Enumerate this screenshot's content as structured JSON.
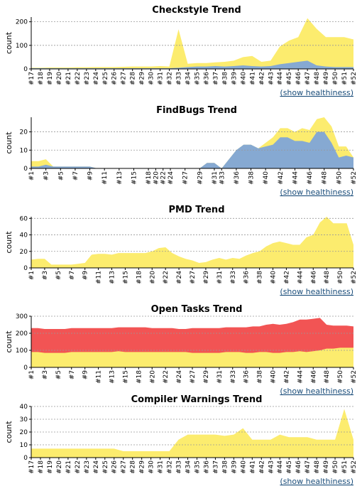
{
  "colors": {
    "yellow": "#fcec6e",
    "blue": "#86a9d2",
    "red": "#f25454",
    "grid": "#999999"
  },
  "chart_data": [
    {
      "type": "area",
      "title": "Checkstyle Trend",
      "ylabel": "count",
      "link": "(show healthiness)",
      "ylim": [
        0,
        220
      ],
      "yticks": [
        0,
        100,
        200
      ],
      "x": [
        "#17",
        "#18",
        "#19",
        "#20",
        "#21",
        "#22",
        "#23",
        "#24",
        "#25",
        "#26",
        "#27",
        "#28",
        "#29",
        "#30",
        "#31",
        "#32",
        "#33",
        "#34",
        "#35",
        "#36",
        "#37",
        "#38",
        "#39",
        "#40",
        "#41",
        "#42",
        "#43",
        "#44",
        "#45",
        "#46",
        "#47",
        "#48",
        "#49",
        "#50",
        "#51",
        "#52"
      ],
      "xticks": [
        "#17",
        "#18",
        "#19",
        "#20",
        "#21",
        "#22",
        "#23",
        "#24",
        "#25",
        "#26",
        "#27",
        "#28",
        "#29",
        "#30",
        "#31",
        "#32",
        "#33",
        "#34",
        "#35",
        "#36",
        "#37",
        "#38",
        "#39",
        "#40",
        "#41",
        "#42",
        "#43",
        "#44",
        "#45",
        "#46",
        "#47",
        "#48",
        "#49",
        "#50",
        "#51",
        "#52"
      ],
      "series": [
        {
          "color": "blue",
          "values": [
            3,
            3,
            3,
            3,
            3,
            3,
            3,
            3,
            3,
            3,
            3,
            3,
            3,
            3,
            3,
            3,
            5,
            8,
            10,
            10,
            12,
            10,
            12,
            15,
            12,
            10,
            12,
            20,
            25,
            30,
            35,
            15,
            10,
            8,
            8,
            8
          ]
        },
        {
          "color": "yellow",
          "values": [
            5,
            5,
            6,
            6,
            6,
            7,
            7,
            8,
            8,
            8,
            9,
            10,
            10,
            10,
            12,
            10,
            168,
            22,
            25,
            25,
            28,
            30,
            35,
            50,
            55,
            30,
            35,
            95,
            120,
            135,
            215,
            170,
            135,
            135,
            135,
            125
          ]
        }
      ]
    },
    {
      "type": "area",
      "title": "FindBugs Trend",
      "ylabel": "count",
      "link": "(show healthiness)",
      "ylim": [
        0,
        28
      ],
      "yticks": [
        0,
        10,
        20
      ],
      "x": [
        "#1",
        "#2",
        "#3",
        "#4",
        "#5",
        "#6",
        "#7",
        "#8",
        "#9",
        "#10",
        "#11",
        "#12",
        "#13",
        "#14",
        "#15",
        "#16",
        "#18",
        "#20",
        "#22",
        "#24",
        "#25",
        "#27",
        "#28",
        "#29",
        "#30",
        "#31",
        "#33",
        "#34",
        "#36",
        "#37",
        "#38",
        "#39",
        "#40",
        "#41",
        "#42",
        "#43",
        "#44",
        "#45",
        "#46",
        "#47",
        "#48",
        "#49",
        "#50",
        "#51",
        "#52"
      ],
      "xticks": [
        "#1",
        "#3",
        "#5",
        "#7",
        "#9",
        "#11",
        "#13",
        "#15",
        "#18",
        "#20",
        "#22",
        "#24",
        "#27",
        "#29",
        "#31",
        "#33",
        "#36",
        "#38",
        "#40",
        "#42",
        "#44",
        "#46",
        "#48",
        "#50",
        "#52"
      ],
      "series": [
        {
          "color": "blue",
          "values": [
            1,
            1,
            2,
            1,
            1,
            1,
            1,
            1,
            1,
            0,
            0,
            0,
            0,
            0,
            0,
            0,
            0,
            0,
            0,
            0,
            0,
            0,
            0,
            0,
            3,
            3,
            0,
            5,
            10,
            13,
            13,
            11,
            12,
            13,
            17,
            17,
            15,
            15,
            14,
            20,
            20,
            14,
            6,
            7,
            6
          ]
        },
        {
          "color": "yellow",
          "values": [
            4,
            4,
            5,
            1,
            1,
            1,
            1,
            1,
            1,
            0,
            0,
            0,
            0,
            0,
            0,
            0,
            0,
            0,
            0,
            0,
            0,
            0,
            0,
            0,
            3,
            3,
            0,
            5,
            10,
            13,
            13,
            11,
            14,
            17,
            22,
            22,
            20,
            22,
            21,
            27,
            28,
            23,
            12,
            12,
            6
          ]
        }
      ]
    },
    {
      "type": "area",
      "title": "PMD Trend",
      "ylabel": "count",
      "link": "(show healthiness)",
      "ylim": [
        0,
        62
      ],
      "yticks": [
        0,
        20,
        40,
        60
      ],
      "x": [
        "#1",
        "#2",
        "#3",
        "#4",
        "#5",
        "#6",
        "#7",
        "#8",
        "#9",
        "#10",
        "#11",
        "#12",
        "#13",
        "#14",
        "#15",
        "#16",
        "#18",
        "#19",
        "#20",
        "#21",
        "#22",
        "#23",
        "#24",
        "#25",
        "#27",
        "#28",
        "#29",
        "#30",
        "#31",
        "#32",
        "#33",
        "#34",
        "#36",
        "#37",
        "#38",
        "#39",
        "#40",
        "#41",
        "#42",
        "#43",
        "#44",
        "#45",
        "#46",
        "#47",
        "#48",
        "#49",
        "#50",
        "#51",
        "#52"
      ],
      "xticks": [
        "#1",
        "#3",
        "#5",
        "#7",
        "#9",
        "#11",
        "#13",
        "#15",
        "#18",
        "#20",
        "#22",
        "#24",
        "#27",
        "#29",
        "#31",
        "#33",
        "#36",
        "#38",
        "#40",
        "#42",
        "#44",
        "#46",
        "#48",
        "#50",
        "#52"
      ],
      "series": [
        {
          "color": "yellow",
          "values": [
            10,
            11,
            11,
            4,
            4,
            4,
            4,
            5,
            6,
            16,
            17,
            17,
            16,
            18,
            18,
            18,
            18,
            18,
            20,
            24,
            25,
            18,
            14,
            11,
            9,
            6,
            7,
            10,
            12,
            10,
            12,
            11,
            15,
            18,
            20,
            26,
            30,
            32,
            30,
            28,
            28,
            37,
            40,
            55,
            62,
            54,
            54,
            54,
            28
          ]
        }
      ]
    },
    {
      "type": "area",
      "title": "Open Tasks Trend",
      "ylabel": "count",
      "link": "(show healthiness)",
      "ylim": [
        0,
        300
      ],
      "yticks": [
        0,
        100,
        200,
        300
      ],
      "x": [
        "#1",
        "#2",
        "#3",
        "#4",
        "#5",
        "#6",
        "#7",
        "#8",
        "#9",
        "#10",
        "#11",
        "#12",
        "#13",
        "#14",
        "#15",
        "#16",
        "#18",
        "#19",
        "#20",
        "#21",
        "#22",
        "#23",
        "#24",
        "#25",
        "#27",
        "#28",
        "#29",
        "#30",
        "#31",
        "#32",
        "#33",
        "#34",
        "#36",
        "#37",
        "#38",
        "#39",
        "#40",
        "#41",
        "#42",
        "#43",
        "#44",
        "#45",
        "#46",
        "#47",
        "#48",
        "#49",
        "#50",
        "#51",
        "#52"
      ],
      "xticks": [
        "#1",
        "#3",
        "#5",
        "#7",
        "#9",
        "#11",
        "#13",
        "#15",
        "#18",
        "#20",
        "#22",
        "#24",
        "#27",
        "#29",
        "#31",
        "#33",
        "#36",
        "#38",
        "#40",
        "#42",
        "#44",
        "#46",
        "#48",
        "#50",
        "#52"
      ],
      "series": [
        {
          "color": "yellow",
          "values": [
            90,
            90,
            85,
            85,
            85,
            85,
            90,
            90,
            90,
            90,
            90,
            90,
            90,
            95,
            90,
            90,
            90,
            90,
            90,
            90,
            90,
            90,
            90,
            90,
            85,
            85,
            85,
            85,
            85,
            90,
            90,
            90,
            85,
            85,
            90,
            90,
            85,
            85,
            90,
            90,
            95,
            90,
            95,
            100,
            110,
            110,
            115,
            115,
            115
          ]
        },
        {
          "color": "red",
          "values": [
            230,
            230,
            225,
            225,
            225,
            225,
            230,
            230,
            230,
            230,
            230,
            230,
            230,
            235,
            235,
            235,
            235,
            235,
            230,
            230,
            230,
            230,
            225,
            225,
            230,
            230,
            230,
            230,
            230,
            235,
            235,
            235,
            235,
            240,
            240,
            250,
            255,
            250,
            255,
            265,
            280,
            280,
            285,
            290,
            250,
            245,
            245,
            245,
            240
          ]
        }
      ]
    },
    {
      "type": "area",
      "title": "Compiler Warnings Trend",
      "ylabel": "count",
      "link": "(show healthiness)",
      "ylim": [
        0,
        40
      ],
      "yticks": [
        0,
        10,
        20,
        30,
        40
      ],
      "x": [
        "#17",
        "#18",
        "#19",
        "#20",
        "#21",
        "#22",
        "#23",
        "#24",
        "#25",
        "#26",
        "#27",
        "#28",
        "#29",
        "#30",
        "#31",
        "#32",
        "#33",
        "#34",
        "#35",
        "#36",
        "#37",
        "#38",
        "#39",
        "#40",
        "#41",
        "#42",
        "#43",
        "#44",
        "#45",
        "#46",
        "#47",
        "#48",
        "#49",
        "#50",
        "#51",
        "#52"
      ],
      "xticks": [
        "#17",
        "#18",
        "#19",
        "#20",
        "#21",
        "#22",
        "#23",
        "#24",
        "#25",
        "#26",
        "#27",
        "#28",
        "#29",
        "#30",
        "#31",
        "#32",
        "#33",
        "#34",
        "#35",
        "#36",
        "#37",
        "#38",
        "#39",
        "#40",
        "#41",
        "#42",
        "#43",
        "#44",
        "#45",
        "#46",
        "#47",
        "#48",
        "#49",
        "#50",
        "#51",
        "#52"
      ],
      "series": [
        {
          "color": "yellow",
          "values": [
            7,
            7,
            7,
            7,
            7,
            7,
            7,
            7,
            7,
            7,
            5,
            5,
            5,
            5,
            5,
            5,
            14,
            18,
            18,
            18,
            18,
            17,
            18,
            23,
            14,
            14,
            14,
            18,
            16,
            16,
            16,
            14,
            14,
            14,
            38,
            14
          ]
        }
      ]
    }
  ]
}
